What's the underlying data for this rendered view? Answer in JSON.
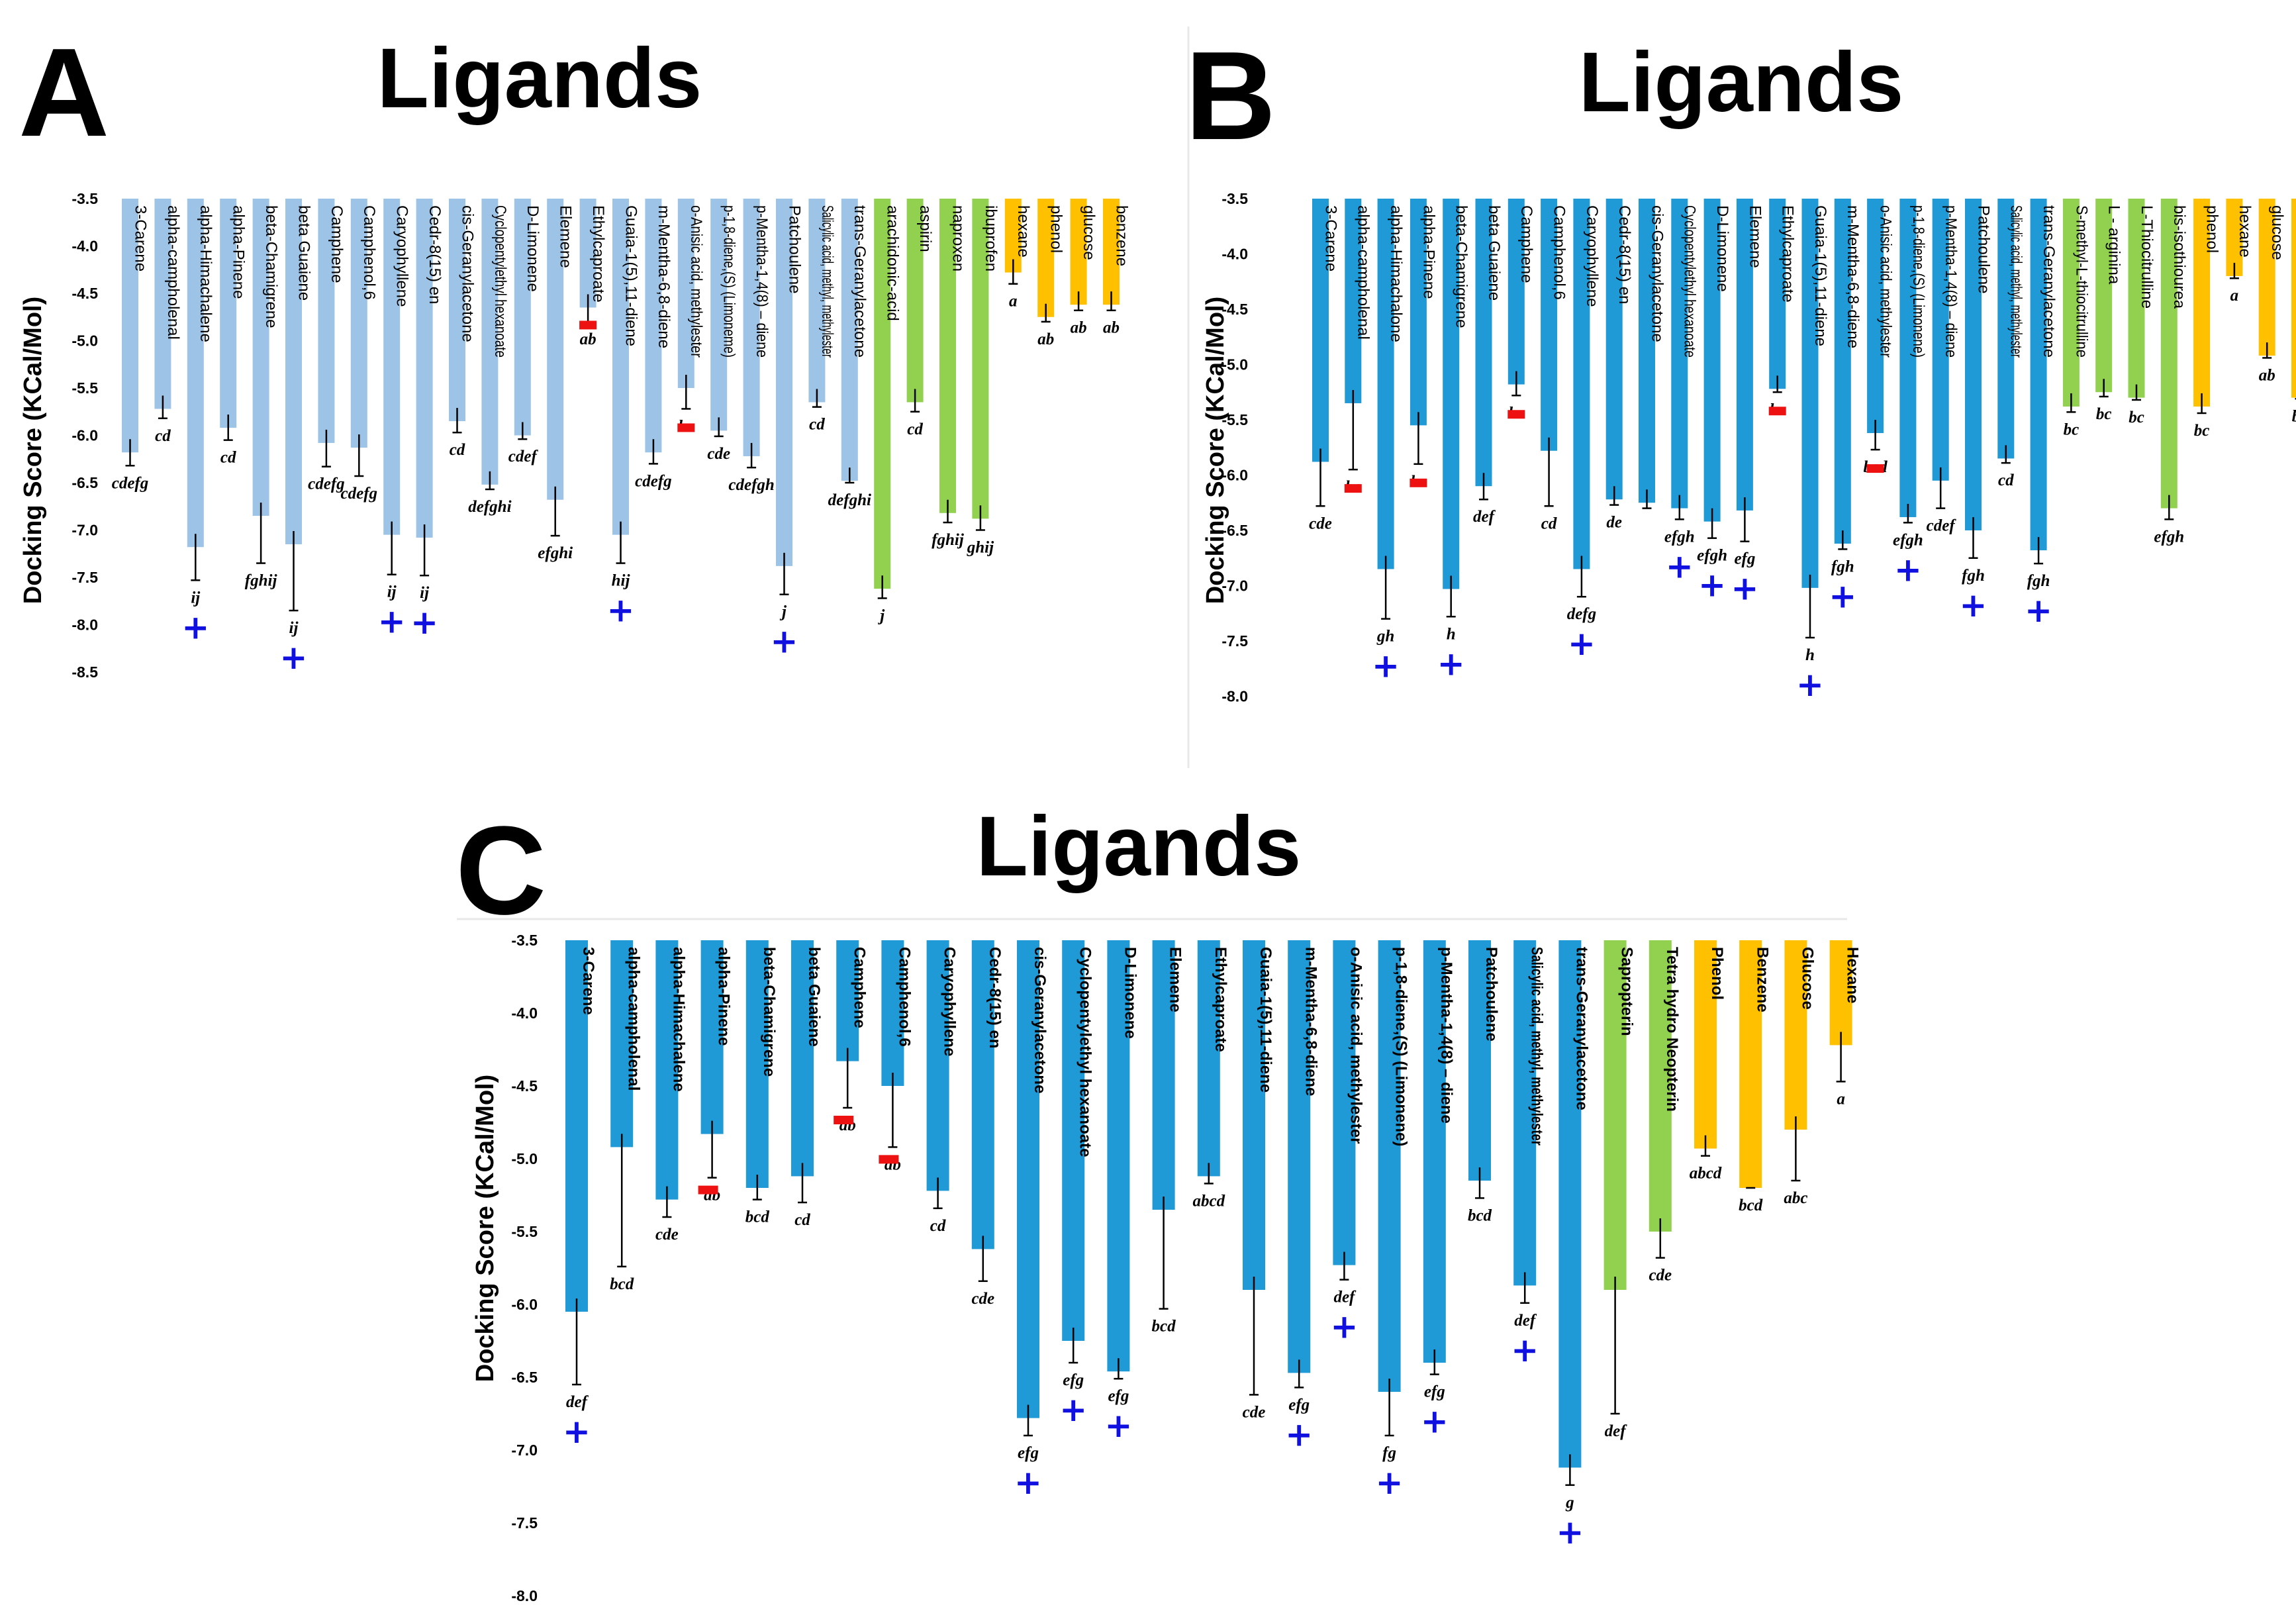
{
  "figure": {
    "ylabel": "Docking Score (KCal/Mol)",
    "colors": {
      "ligand_a": "#9dc3e6",
      "ligand_bc": "#1f9ad6",
      "reference": "#92d050",
      "control": "#ffc000",
      "increase": "#1010e0",
      "decrease": "#ee1111"
    }
  },
  "chart_data": [
    {
      "panel": "A",
      "type": "bar",
      "title": "Ligands",
      "ylabel": "Docking Score (KCal/Mol)",
      "ylim": [
        -3.5,
        -8.5
      ],
      "yticks": [
        -3.5,
        -4.0,
        -4.5,
        -5.0,
        -5.5,
        -6.0,
        -6.5,
        -7.0,
        -7.5,
        -8.0,
        -8.5
      ],
      "bars": [
        {
          "label": "3-Carene",
          "value": -6.18,
          "error": 0.14,
          "sig": "cdefg",
          "marker": "",
          "group": "ligand"
        },
        {
          "label": "alpha-campholenal",
          "value": -5.72,
          "error": 0.1,
          "sig": "cd",
          "marker": "",
          "group": "ligand"
        },
        {
          "label": "alpha-Himachalene",
          "value": -7.18,
          "error": 0.35,
          "sig": "ij",
          "marker": "+",
          "group": "ligand"
        },
        {
          "label": "alpha-Pinene",
          "value": -5.92,
          "error": 0.13,
          "sig": "cd",
          "marker": "",
          "group": "ligand"
        },
        {
          "label": "beta-Chamigrene",
          "value": -6.85,
          "error": 0.5,
          "sig": "fghij",
          "marker": "",
          "group": "ligand"
        },
        {
          "label": "beta Guaiene",
          "value": -7.15,
          "error": 0.7,
          "sig": "ij",
          "marker": "+",
          "group": "ligand"
        },
        {
          "label": "Camphene",
          "value": -6.08,
          "error": 0.25,
          "sig": "cdefg",
          "marker": "",
          "group": "ligand"
        },
        {
          "label": "Camphenol,6",
          "value": -6.13,
          "error": 0.3,
          "sig": "cdefg",
          "marker": "",
          "group": "ligand"
        },
        {
          "label": "Caryophyllene",
          "value": -7.05,
          "error": 0.42,
          "sig": "ij",
          "marker": "+",
          "group": "ligand"
        },
        {
          "label": "Cedr-8(15) en",
          "value": -7.08,
          "error": 0.4,
          "sig": "ij",
          "marker": "+",
          "group": "ligand"
        },
        {
          "label": "cis-Geranylacetone",
          "value": -5.85,
          "error": 0.12,
          "sig": "cd",
          "marker": "",
          "group": "ligand"
        },
        {
          "label": "Cyclopentylethyl hexanoate",
          "value": -6.52,
          "error": 0.05,
          "sig": "defghi",
          "marker": "",
          "group": "ligand"
        },
        {
          "label": "D-Limonene",
          "value": -6.0,
          "error": 0.04,
          "sig": "cdef",
          "marker": "",
          "group": "ligand"
        },
        {
          "label": "Elemene",
          "value": -6.68,
          "error": 0.38,
          "sig": "efghi",
          "marker": "",
          "group": "ligand"
        },
        {
          "label": "Ethylcaproate",
          "value": -4.65,
          "error": 0.15,
          "sig": "ab",
          "marker": "-",
          "group": "ligand"
        },
        {
          "label": "Guaia-1(5),11-diene",
          "value": -7.05,
          "error": 0.3,
          "sig": "hij",
          "marker": "+",
          "group": "ligand"
        },
        {
          "label": "m-Mentha-6,8-diene",
          "value": -6.18,
          "error": 0.12,
          "sig": "cdefg",
          "marker": "",
          "group": "ligand"
        },
        {
          "label": "o-Anisic acid, methylester",
          "value": -5.5,
          "error": 0.22,
          "sig": "bc",
          "marker": "-",
          "group": "ligand"
        },
        {
          "label": "p-1,8-diene,(S) (Limoneme)",
          "value": -5.95,
          "error": 0.06,
          "sig": "cde",
          "marker": "",
          "group": "ligand"
        },
        {
          "label": "p-Mentha-1,4(8) – diene",
          "value": -6.22,
          "error": 0.12,
          "sig": "cdefgh",
          "marker": "",
          "group": "ligand"
        },
        {
          "label": "Patchoulene",
          "value": -7.38,
          "error": 0.3,
          "sig": "j",
          "marker": "+",
          "group": "ligand"
        },
        {
          "label": "Salicylic acid, methyl, methylester",
          "value": -5.65,
          "error": 0.05,
          "sig": "cd",
          "marker": "",
          "group": "ligand"
        },
        {
          "label": "trans-Geranylacetone",
          "value": -6.48,
          "error": 0.02,
          "sig": "defghi",
          "marker": "",
          "group": "ligand"
        },
        {
          "label": "arachidonic-acid",
          "value": -7.62,
          "error": 0.1,
          "sig": "j",
          "marker": "",
          "group": "reference"
        },
        {
          "label": "aspirin",
          "value": -5.65,
          "error": 0.1,
          "sig": "cd",
          "marker": "",
          "group": "reference"
        },
        {
          "label": "naproxen",
          "value": -6.82,
          "error": 0.1,
          "sig": "fghij",
          "marker": "",
          "group": "reference"
        },
        {
          "label": "ibuprofen",
          "value": -6.88,
          "error": 0.12,
          "sig": "ghij",
          "marker": "",
          "group": "reference"
        },
        {
          "label": "hexane",
          "value": -4.28,
          "error": 0.12,
          "sig": "a",
          "marker": "",
          "group": "control"
        },
        {
          "label": "phenol",
          "value": -4.75,
          "error": 0.05,
          "sig": "ab",
          "marker": "",
          "group": "control"
        },
        {
          "label": "glucose",
          "value": -4.62,
          "error": 0.06,
          "sig": "ab",
          "marker": "",
          "group": "control"
        },
        {
          "label": "benzene",
          "value": -4.62,
          "error": 0.06,
          "sig": "ab",
          "marker": "",
          "group": "control"
        }
      ]
    },
    {
      "panel": "B",
      "type": "bar",
      "title": "Ligands",
      "ylabel": "Docking Score (KCal/Mol)",
      "ylim": [
        -3.5,
        -8.0
      ],
      "yticks": [
        -3.5,
        -4.0,
        -4.5,
        -5.0,
        -5.5,
        -6.0,
        -6.5,
        -7.0,
        -7.5,
        -8.0
      ],
      "bars": [
        {
          "label": "3-Carene",
          "value": -5.88,
          "error": 0.4,
          "sig": "cde",
          "marker": "",
          "group": "ligand"
        },
        {
          "label": "alpha-campholenal",
          "value": -5.35,
          "error": 0.6,
          "sig": "bc",
          "marker": "-",
          "group": "ligand"
        },
        {
          "label": "alpha-Himachalone",
          "value": -6.85,
          "error": 0.45,
          "sig": "gh",
          "marker": "+",
          "group": "ligand"
        },
        {
          "label": "alpha-Pinene",
          "value": -5.55,
          "error": 0.35,
          "sig": "bc",
          "marker": "-",
          "group": "ligand"
        },
        {
          "label": "beta-Chamigrene",
          "value": -7.03,
          "error": 0.25,
          "sig": "h",
          "marker": "+",
          "group": "ligand"
        },
        {
          "label": "beta Guaiene",
          "value": -6.1,
          "error": 0.12,
          "sig": "def",
          "marker": "",
          "group": "ligand"
        },
        {
          "label": "Camphene",
          "value": -5.18,
          "error": 0.1,
          "sig": "bc",
          "marker": "-",
          "group": "ligand"
        },
        {
          "label": "Camphenol,6",
          "value": -5.78,
          "error": 0.5,
          "sig": "cd",
          "marker": "",
          "group": "ligand"
        },
        {
          "label": "Caryophyllene",
          "value": -6.85,
          "error": 0.25,
          "sig": "defg",
          "marker": "+",
          "group": "ligand"
        },
        {
          "label": "Cedr-8(15) en",
          "value": -6.22,
          "error": 0.05,
          "sig": "de",
          "marker": "",
          "group": "ligand"
        },
        {
          "label": "cis-Geranylacetone",
          "value": -6.25,
          "error": 0.05,
          "sig": "",
          "marker": "",
          "group": "ligand"
        },
        {
          "label": "Cyclopentylethyl hexanoate",
          "value": -6.3,
          "error": 0.1,
          "sig": "efgh",
          "marker": "+",
          "group": "ligand"
        },
        {
          "label": "D-Limonene",
          "value": -6.42,
          "error": 0.15,
          "sig": "efgh",
          "marker": "+",
          "group": "ligand"
        },
        {
          "label": "Elemene",
          "value": -6.32,
          "error": 0.28,
          "sig": "efg",
          "marker": "+",
          "group": "ligand"
        },
        {
          "label": "Ethylcaproate",
          "value": -5.22,
          "error": 0.03,
          "sig": "bc",
          "marker": "-",
          "group": "ligand"
        },
        {
          "label": "Guaia-1(5),11-diene",
          "value": -7.02,
          "error": 0.45,
          "sig": "h",
          "marker": "+",
          "group": "ligand"
        },
        {
          "label": "m-Mentha-6,8-diene",
          "value": -6.62,
          "error": 0.05,
          "sig": "fgh",
          "marker": "+",
          "group": "ligand"
        },
        {
          "label": "o-Anisic acid, methylester",
          "value": -5.62,
          "error": 0.15,
          "sig": "bcd",
          "marker": "-",
          "group": "ligand"
        },
        {
          "label": "p-1,8-diene,(S) (Limonene)",
          "value": -6.38,
          "error": 0.05,
          "sig": "efgh",
          "marker": "+",
          "group": "ligand"
        },
        {
          "label": "p-Mentha-1,4(8) – diene",
          "value": -6.05,
          "error": 0.25,
          "sig": "cdef",
          "marker": "",
          "group": "ligand"
        },
        {
          "label": "Patchoulene",
          "value": -6.5,
          "error": 0.25,
          "sig": "fgh",
          "marker": "+",
          "group": "ligand"
        },
        {
          "label": "Salicylic acid, methyl, methylester",
          "value": -5.85,
          "error": 0.04,
          "sig": "cd",
          "marker": "",
          "group": "ligand"
        },
        {
          "label": "trans-Geranylacetone",
          "value": -6.68,
          "error": 0.12,
          "sig": "fgh",
          "marker": "+",
          "group": "ligand"
        },
        {
          "label": "S-methyl-L-thiocitrulline",
          "value": -5.38,
          "error": 0.05,
          "sig": "bc",
          "marker": "",
          "group": "reference"
        },
        {
          "label": "L - arginina",
          "value": -5.25,
          "error": 0.04,
          "sig": "bc",
          "marker": "",
          "group": "reference"
        },
        {
          "label": "L-Thiocitrulline",
          "value": -5.3,
          "error": 0.02,
          "sig": "bc",
          "marker": "",
          "group": "reference"
        },
        {
          "label": "bis-isothiourea",
          "value": -6.3,
          "error": 0.1,
          "sig": "efgh",
          "marker": "",
          "group": "reference"
        },
        {
          "label": "phenol",
          "value": -5.38,
          "error": 0.06,
          "sig": "bc",
          "marker": "",
          "group": "control"
        },
        {
          "label": "hexane",
          "value": -4.2,
          "error": 0.02,
          "sig": "a",
          "marker": "",
          "group": "control"
        },
        {
          "label": "glucose",
          "value": -4.92,
          "error": 0.02,
          "sig": "ab",
          "marker": "",
          "group": "control"
        },
        {
          "label": "benzene",
          "value": -5.3,
          "error": 0.01,
          "sig": "bc",
          "marker": "",
          "group": "control"
        }
      ]
    },
    {
      "panel": "C",
      "type": "bar",
      "title": "Ligands",
      "ylabel": "Docking Score (KCal/Mol)",
      "ylim": [
        -3.5,
        -8.0
      ],
      "yticks": [
        -3.5,
        -4.0,
        -4.5,
        -5.0,
        -5.5,
        -6.0,
        -6.5,
        -7.0,
        -7.5,
        -8.0
      ],
      "bars": [
        {
          "label": "3-Carene",
          "value": -6.05,
          "error": 0.5,
          "sig": "def",
          "marker": "+",
          "group": "ligand"
        },
        {
          "label": "alpha-campholenal",
          "value": -4.92,
          "error": 0.82,
          "sig": "bcd",
          "marker": "",
          "group": "ligand"
        },
        {
          "label": "alpha-Himachalene",
          "value": -5.28,
          "error": 0.12,
          "sig": "cde",
          "marker": "",
          "group": "ligand"
        },
        {
          "label": "alpha-Pinene",
          "value": -4.83,
          "error": 0.3,
          "sig": "ab",
          "marker": "-",
          "group": "ligand"
        },
        {
          "label": "beta-Chamigrene",
          "value": -5.2,
          "error": 0.08,
          "sig": "bcd",
          "marker": "",
          "group": "ligand"
        },
        {
          "label": "beta Guaiene",
          "value": -5.12,
          "error": 0.18,
          "sig": "cd",
          "marker": "",
          "group": "ligand"
        },
        {
          "label": "Camphene",
          "value": -4.33,
          "error": 0.32,
          "sig": "ab",
          "marker": "-",
          "group": "ligand"
        },
        {
          "label": "Camphenol,6",
          "value": -4.5,
          "error": 0.42,
          "sig": "ab",
          "marker": "-",
          "group": "ligand"
        },
        {
          "label": "Caryophyllene",
          "value": -5.22,
          "error": 0.12,
          "sig": "cd",
          "marker": "",
          "group": "ligand"
        },
        {
          "label": "Cedr-8(15) en",
          "value": -5.62,
          "error": 0.22,
          "sig": "cde",
          "marker": "",
          "group": "ligand"
        },
        {
          "label": "cis-Geranylacetone",
          "value": -6.78,
          "error": 0.12,
          "sig": "efg",
          "marker": "+",
          "group": "ligand"
        },
        {
          "label": "Cyclopentylethyl hexanoate",
          "value": -6.25,
          "error": 0.15,
          "sig": "efg",
          "marker": "+",
          "group": "ligand"
        },
        {
          "label": "D-Limonene",
          "value": -6.46,
          "error": 0.05,
          "sig": "efg",
          "marker": "+",
          "group": "ligand"
        },
        {
          "label": "Elemene",
          "value": -5.35,
          "error": 0.68,
          "sig": "bcd",
          "marker": "",
          "group": "ligand"
        },
        {
          "label": "Ethylcaproate",
          "value": -5.12,
          "error": 0.05,
          "sig": "abcd",
          "marker": "",
          "group": "ligand"
        },
        {
          "label": "Guaia-1(5),11-diene",
          "value": -5.9,
          "error": 0.72,
          "sig": "cde",
          "marker": "",
          "group": "ligand"
        },
        {
          "label": "m-Mentha-6,8-diene",
          "value": -6.47,
          "error": 0.1,
          "sig": "efg",
          "marker": "+",
          "group": "ligand"
        },
        {
          "label": "o-Anisic acid, methylester",
          "value": -5.73,
          "error": 0.1,
          "sig": "def",
          "marker": "+",
          "group": "ligand"
        },
        {
          "label": "p-1,8-diene,(S) (Limonene)",
          "value": -6.6,
          "error": 0.3,
          "sig": "fg",
          "marker": "+",
          "group": "ligand"
        },
        {
          "label": "p-Mentha-1,4(8) – diene",
          "value": -6.4,
          "error": 0.08,
          "sig": "efg",
          "marker": "+",
          "group": "ligand"
        },
        {
          "label": "Patchoulene",
          "value": -5.15,
          "error": 0.12,
          "sig": "bcd",
          "marker": "",
          "group": "ligand"
        },
        {
          "label": "Salicylic acid, methyl, methylester",
          "value": -5.87,
          "error": 0.12,
          "sig": "def",
          "marker": "+",
          "group": "ligand"
        },
        {
          "label": "trans-Geranylacetone",
          "value": -7.12,
          "error": 0.12,
          "sig": "g",
          "marker": "+",
          "group": "ligand"
        },
        {
          "label": "Sapropterin",
          "value": -5.9,
          "error": 0.85,
          "sig": "def",
          "marker": "",
          "group": "reference"
        },
        {
          "label": "Tetra hydro Neopterin",
          "value": -5.5,
          "error": 0.18,
          "sig": "cde",
          "marker": "",
          "group": "reference"
        },
        {
          "label": "Phenol",
          "value": -4.93,
          "error": 0.05,
          "sig": "abcd",
          "marker": "",
          "group": "control"
        },
        {
          "label": "Benzene",
          "value": -5.2,
          "error": 0.0,
          "sig": "bcd",
          "marker": "",
          "group": "control"
        },
        {
          "label": "Glucose",
          "value": -4.8,
          "error": 0.35,
          "sig": "abc",
          "marker": "",
          "group": "control"
        },
        {
          "label": "Hexane",
          "value": -4.22,
          "error": 0.25,
          "sig": "a",
          "marker": "",
          "group": "control"
        }
      ]
    }
  ]
}
